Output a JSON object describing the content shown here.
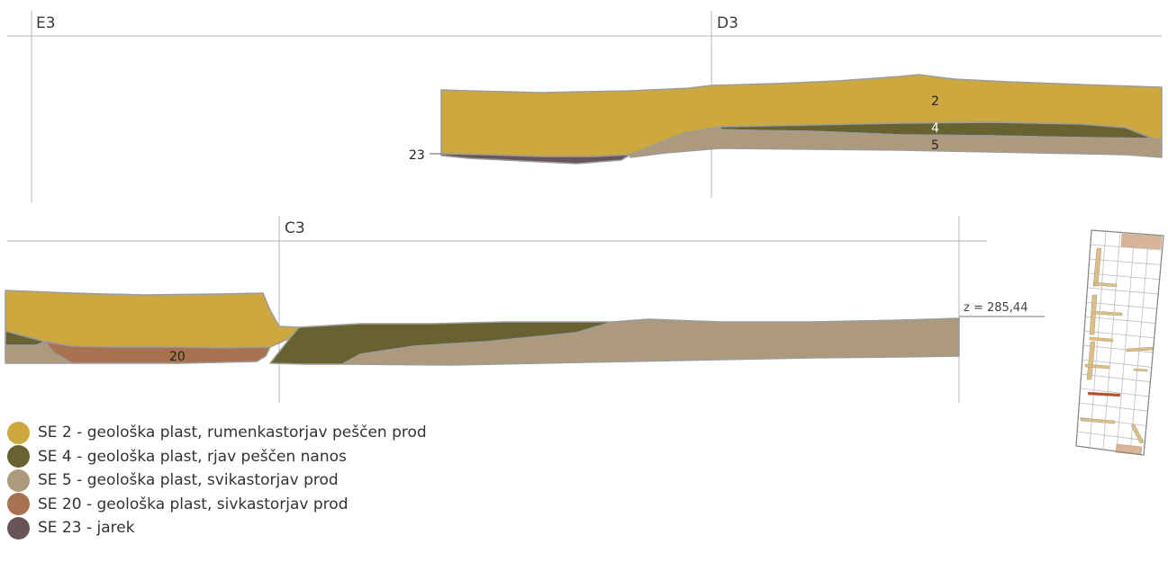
{
  "grid_labels": {
    "e3": "E3",
    "d3": "D3",
    "c3": "C3"
  },
  "profile_labels": {
    "se2": "2",
    "se4": "4",
    "se5": "5",
    "se23": "23",
    "se20": "20"
  },
  "elevation_label": "z = 285,44",
  "colors": {
    "se2": "#cda83e",
    "se4": "#686130",
    "se5": "#ad9a7c",
    "se20": "#a8714f",
    "se23": "#695558",
    "edge": "#9c9c9c",
    "grid": "#b5b5b5",
    "red_feature": "#c0452e",
    "plan_fill": "#d8b49a",
    "plan_bar": "#d9c08a"
  },
  "legend": [
    {
      "color": "#cda83e",
      "label": "SE 2 - geološka plast, rumenkastorjav peščen prod"
    },
    {
      "color": "#686130",
      "label": "SE 4 - geološka plast, rjav peščen nanos"
    },
    {
      "color": "#ad9a7c",
      "label": "SE 5 - geološka plast, svikastorjav prod"
    },
    {
      "color": "#a8714f",
      "label": "SE 20 - geološka plast, sivkastorjav prod"
    },
    {
      "color": "#695558",
      "label": "SE 23 - jarek"
    }
  ],
  "icons": {
    "site_plan": "site-plan-icon"
  }
}
